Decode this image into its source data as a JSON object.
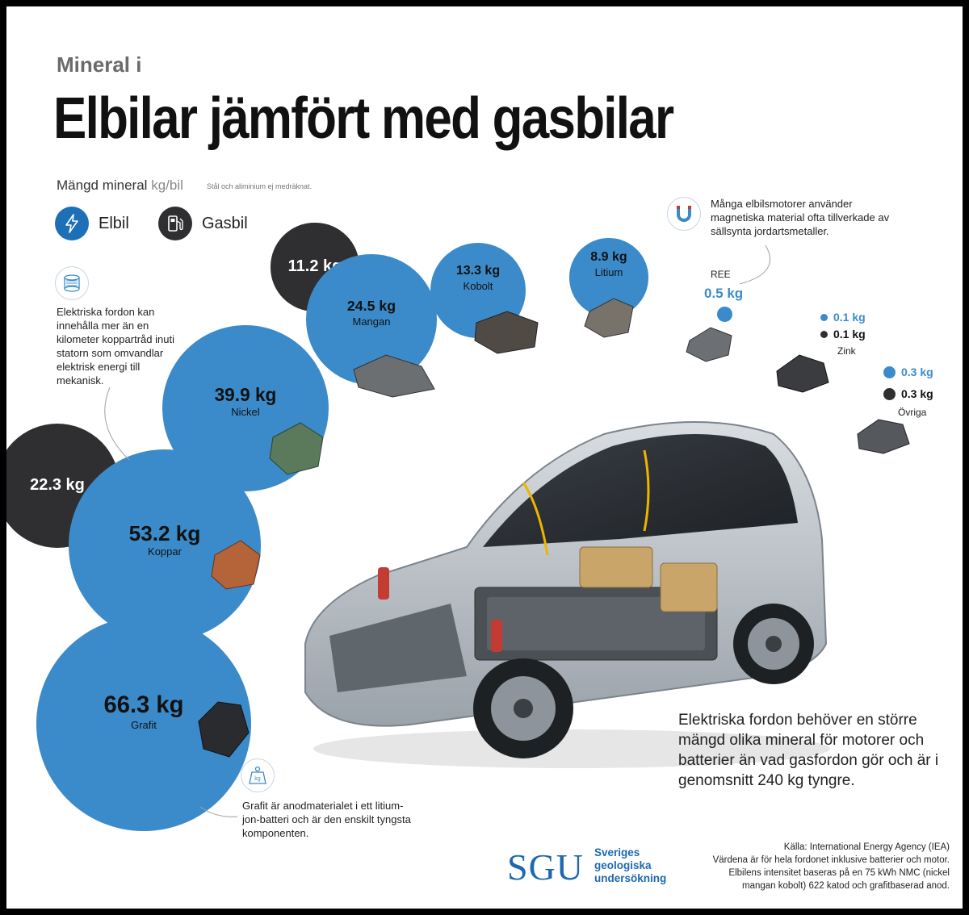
{
  "header": {
    "kicker": "Mineral i",
    "title": "Elbilar jämfört med gasbilar",
    "subtitle_main": "Mängd mineral",
    "subtitle_unit": "kg/bil",
    "subtitle_note": "Stål och aliminium ej medräknat."
  },
  "legend": {
    "ev_label": "Elbil",
    "gas_label": "Gasbil",
    "ev_color": "#3b8bca",
    "gas_color": "#2f2e30",
    "ev_icon": "lightning-icon",
    "gas_icon": "fuel-pump-icon"
  },
  "notes": {
    "copper_note": "Elektriska fordon kan innehålla mer än en kilometer koppartråd inuti statorn som omvandlar elektrisk energi till mekanisk.",
    "magnet_note": "Många elbilsmotorer använder magnetiska material ofta tillverkade av sällsynta jordartsmetaller.",
    "graphite_note": "Grafit är anodmaterialet i ett litium-jon-batteri och är den enskilt tyngsta komponenten.",
    "claim": "Elektriska fordon behöver en större mängd olika mineral för motorer och batterier än vad gasfordon gör och är i genomsnitt 240 kg tyngre.",
    "copper_icon": "wire-spool-icon",
    "magnet_icon": "magnet-icon",
    "graphite_icon": "weight-kg-icon",
    "weight_icon_text": "kg"
  },
  "chart_data": {
    "type": "bubble",
    "title": "Elbilar jämfört med gasbilar",
    "unit": "kg/bil",
    "series": [
      {
        "name": "Elbil",
        "color": "#3b8bca"
      },
      {
        "name": "Gasbil",
        "color": "#2f2e30"
      }
    ],
    "minerals": [
      {
        "name": "Grafit",
        "elbil": 66.3,
        "gasbil": null,
        "elbil_label": "66.3 kg",
        "gasbil_label": ""
      },
      {
        "name": "Koppar",
        "elbil": 53.2,
        "gasbil": 22.3,
        "elbil_label": "53.2 kg",
        "gasbil_label": "22.3 kg"
      },
      {
        "name": "Nickel",
        "elbil": 39.9,
        "gasbil": null,
        "elbil_label": "39.9 kg",
        "gasbil_label": ""
      },
      {
        "name": "Mangan",
        "elbil": 24.5,
        "gasbil": 11.2,
        "elbil_label": "24.5 kg",
        "gasbil_label": "11.2 kg"
      },
      {
        "name": "Kobolt",
        "elbil": 13.3,
        "gasbil": null,
        "elbil_label": "13.3 kg",
        "gasbil_label": ""
      },
      {
        "name": "Litium",
        "elbil": 8.9,
        "gasbil": null,
        "elbil_label": "8.9 kg",
        "gasbil_label": ""
      },
      {
        "name": "REE",
        "elbil": 0.5,
        "gasbil": null,
        "elbil_label": "0.5 kg",
        "gasbil_label": ""
      },
      {
        "name": "Zink",
        "elbil": 0.1,
        "gasbil": 0.1,
        "elbil_label": "0.1 kg",
        "gasbil_label": "0.1 kg"
      },
      {
        "name": "Övriga",
        "elbil": 0.3,
        "gasbil": 0.3,
        "elbil_label": "0.3 kg",
        "gasbil_label": "0.3 kg"
      }
    ]
  },
  "footer": {
    "source": "Källa: International Energy Agency (IEA)",
    "line2": "Värdena är för hela fordonet inklusive batterier och motor.",
    "line3": "Elbilens intensitet baseras på en 75 kWh NMC (nickel",
    "line4": "mangan kobolt) 622 katod och grafitbaserad anod.",
    "logo": "SGU",
    "org_line1": "Sveriges",
    "org_line2": "geologiska",
    "org_line3": "undersökning",
    "logo_color": "#1d68b1"
  }
}
